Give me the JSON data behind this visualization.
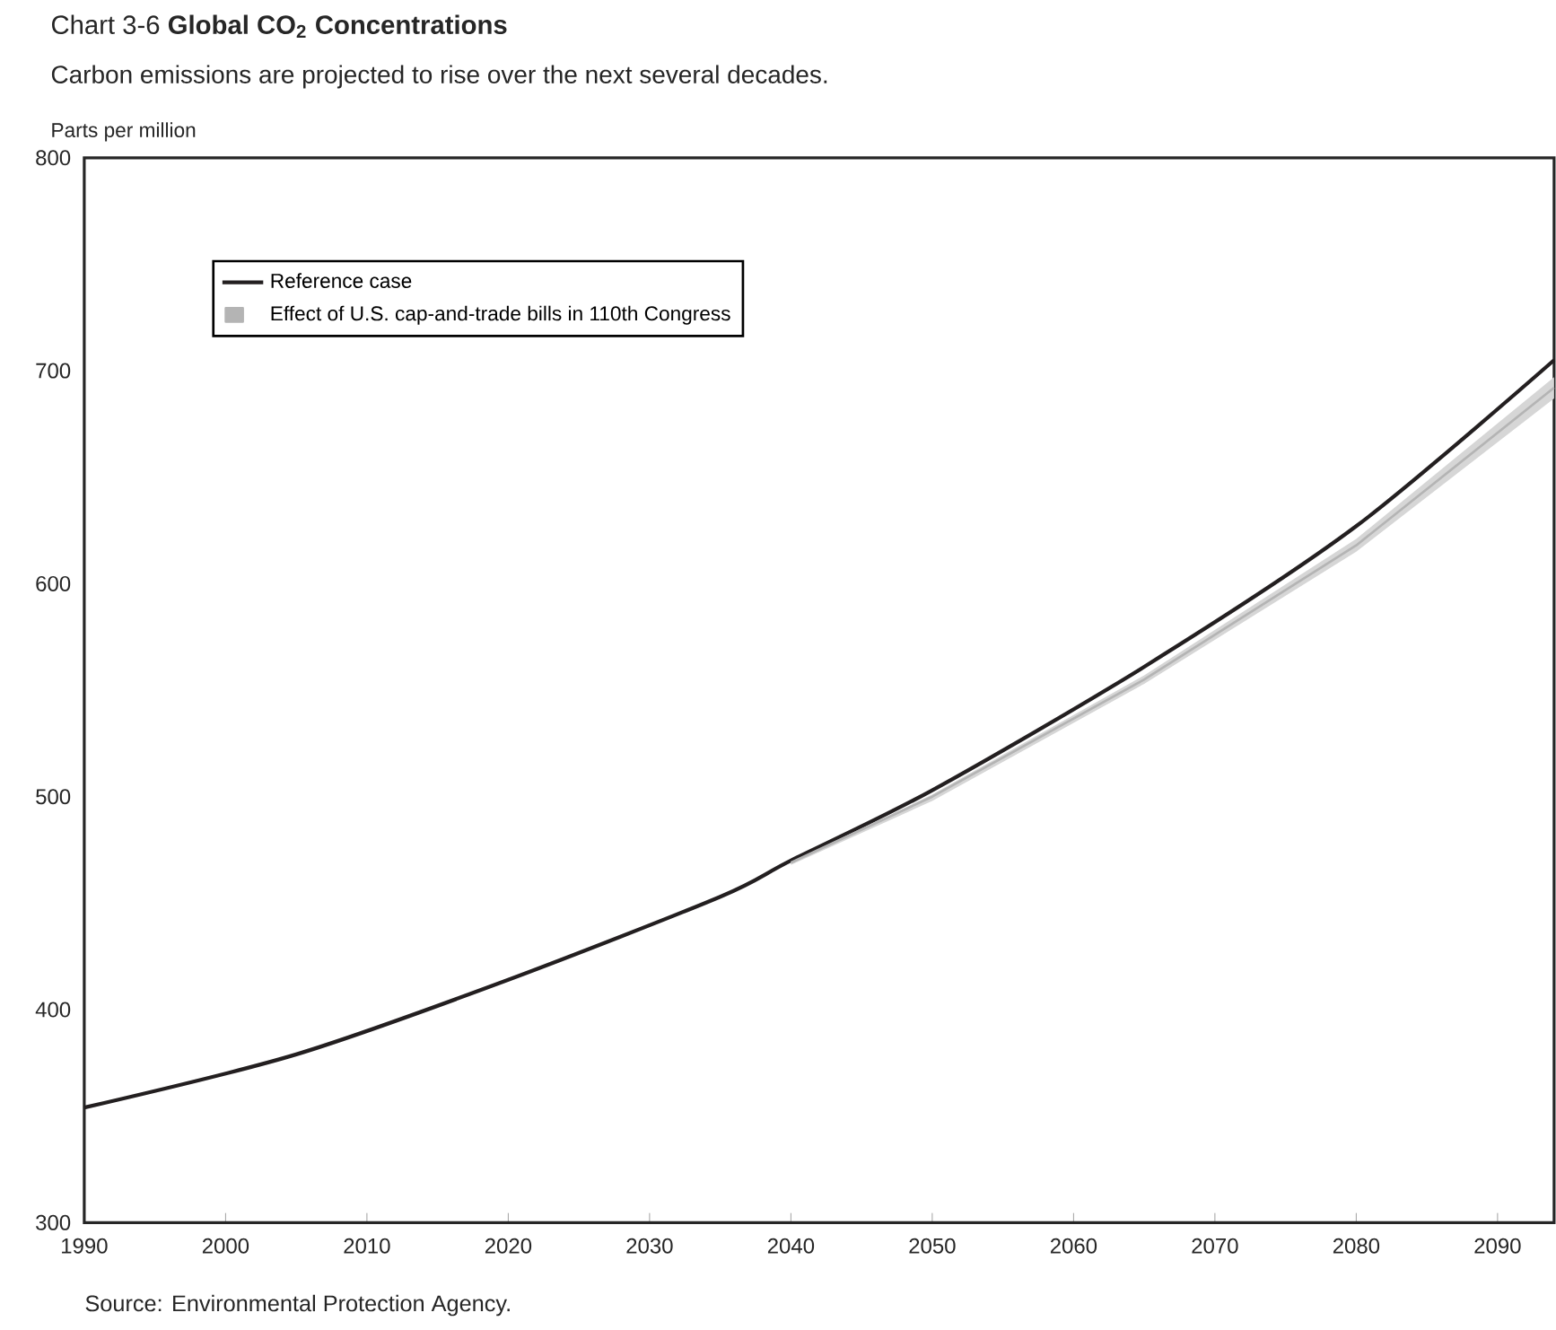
{
  "chart_data": {
    "type": "line",
    "title": "Chart 3-6 **Global CO$_{2}$ Concentrations**",
    "subtitle": "Carbon emissions are projected to rise over the next several decades.",
    "ylabel": "Parts per million",
    "annotations": [
      "Source: Environmental Protection Agency."
    ],
    "xlim": [
      1990,
      2094
    ],
    "ylim": [
      300,
      800
    ],
    "xticks": [
      1990,
      2000,
      2010,
      2020,
      2030,
      2040,
      2050,
      2060,
      2070,
      2080,
      2090
    ],
    "yticks": [
      300,
      400,
      500,
      600,
      700,
      800
    ],
    "legend": "top left",
    "series": [
      {
        "name": "Reference case",
        "color": "#231f20",
        "x": [
          1990,
          2005,
          2020,
          2035,
          2040,
          2050,
          2065,
          2080,
          2094
        ],
        "values": [
          354,
          379,
          414,
          453,
          470,
          503,
          561,
          627,
          705
        ]
      },
      {
        "name": "Effect of U.S. cap-and-trade bills in 110th Congress",
        "color": "#b4b4b4",
        "x": [
          2040,
          2050,
          2065,
          2080,
          2094
        ],
        "values": [
          469,
          500,
          555,
          618,
          692
        ],
        "lower": [
          468,
          498,
          553,
          615,
          687
        ],
        "upper": [
          469,
          501,
          557,
          621,
          697
        ]
      }
    ]
  }
}
